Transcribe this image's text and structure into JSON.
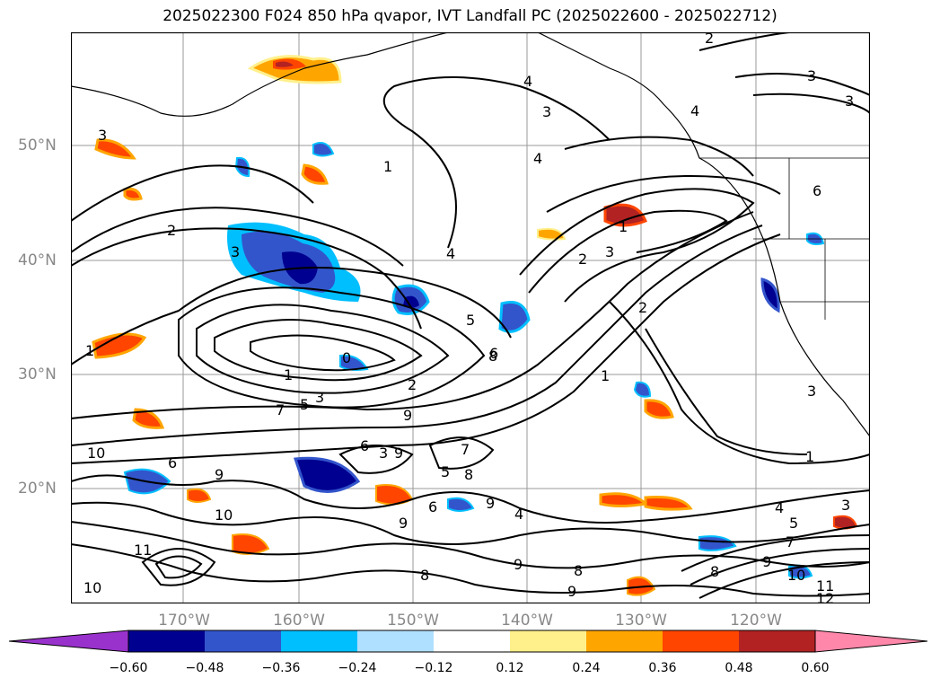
{
  "title": "2025022300 F024 850 hPa qvapor, IVT Landfall PC (2025022600 - 2025022712)",
  "map": {
    "lat_labels": [
      "50°N",
      "40°N",
      "30°N",
      "20°N"
    ],
    "lon_labels": [
      "170°W",
      "160°W",
      "150°W",
      "140°W",
      "130°W",
      "120°W"
    ],
    "contour_labels": [
      "2",
      "3",
      "3",
      "3",
      "4",
      "4",
      "4",
      "1",
      "2",
      "3",
      "2",
      "3",
      "4",
      "5",
      "6",
      "1",
      "1",
      "2",
      "3",
      "2",
      "3",
      "1",
      "0",
      "7",
      "5",
      "9",
      "8",
      "9",
      "6",
      "4",
      "1",
      "1",
      "3",
      "10",
      "9",
      "6",
      "7",
      "5",
      "8",
      "9",
      "6",
      "11",
      "10",
      "9",
      "10",
      "8",
      "9",
      "9",
      "8",
      "7",
      "8",
      "9",
      "10",
      "11",
      "12",
      "3",
      "4",
      "5",
      "6",
      "3"
    ]
  },
  "colorbar": {
    "ticks": [
      "−0.60",
      "−0.48",
      "−0.36",
      "−0.24",
      "−0.12",
      "0.12",
      "0.24",
      "0.36",
      "0.48",
      "0.60"
    ],
    "colors": [
      "#9932cc",
      "#000090",
      "#3355cc",
      "#00bfff",
      "#b0e0ff",
      "#ffffff",
      "#fff08c",
      "#ffa500",
      "#ff4500",
      "#b22222",
      "#ff88aa"
    ]
  }
}
